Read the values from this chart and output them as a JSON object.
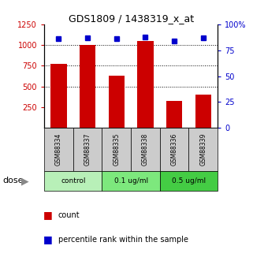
{
  "title": "GDS1809 / 1438319_x_at",
  "samples": [
    "GSM88334",
    "GSM88337",
    "GSM88335",
    "GSM88338",
    "GSM88336",
    "GSM88339"
  ],
  "counts": [
    775,
    1000,
    635,
    1050,
    325,
    400
  ],
  "percentiles": [
    86,
    87,
    86,
    88,
    84,
    87
  ],
  "groups": [
    {
      "label": "control",
      "indices": [
        0,
        1
      ],
      "color": "#b8f0b8"
    },
    {
      "label": "0.1 ug/ml",
      "indices": [
        2,
        3
      ],
      "color": "#7de87d"
    },
    {
      "label": "0.5 ug/ml",
      "indices": [
        4,
        5
      ],
      "color": "#44cc44"
    }
  ],
  "bar_color": "#cc0000",
  "dot_color": "#0000cc",
  "left_axis_color": "#cc0000",
  "right_axis_color": "#0000cc",
  "ylim_left": [
    0,
    1250
  ],
  "ylim_right": [
    0,
    100
  ],
  "left_ticks": [
    250,
    500,
    750,
    1000,
    1250
  ],
  "right_ticks": [
    0,
    25,
    50,
    75,
    100
  ],
  "dotted_lines": [
    500,
    750,
    1000
  ],
  "background_color": "#ffffff",
  "tick_label_area_color": "#cccccc",
  "dose_label": "dose",
  "legend_count_label": "count",
  "legend_percentile_label": "percentile rank within the sample"
}
